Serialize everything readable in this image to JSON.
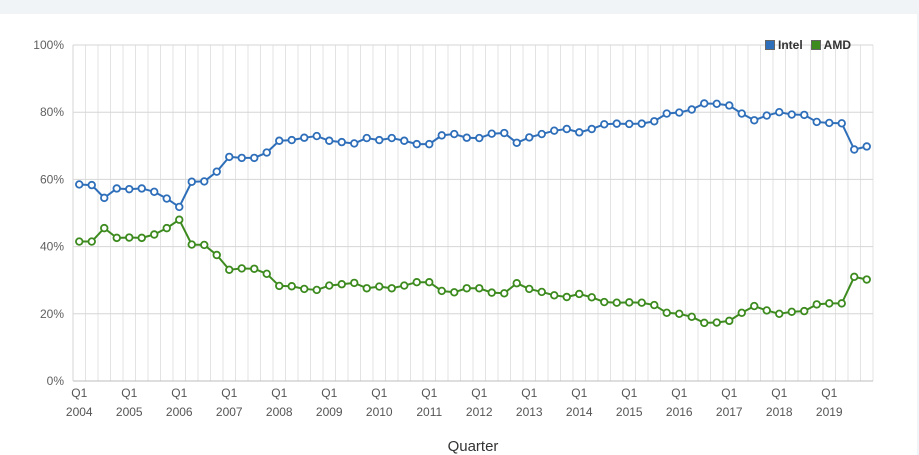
{
  "chart_data": {
    "type": "line",
    "xlabel": "Quarter",
    "ylabel": "",
    "ylim": [
      0,
      100
    ],
    "y_ticks": [
      "0%",
      "20%",
      "40%",
      "60%",
      "80%",
      "100%"
    ],
    "grid": true,
    "legend_position": "top-right",
    "quarter_tick_label": "Q1",
    "years": [
      "2004",
      "2005",
      "2006",
      "2007",
      "2008",
      "2009",
      "2010",
      "2011",
      "2012",
      "2013",
      "2014",
      "2015",
      "2016",
      "2017",
      "2018",
      "2019"
    ],
    "x": [
      "2004 Q1",
      "2004 Q2",
      "2004 Q3",
      "2004 Q4",
      "2005 Q1",
      "2005 Q2",
      "2005 Q3",
      "2005 Q4",
      "2006 Q1",
      "2006 Q2",
      "2006 Q3",
      "2006 Q4",
      "2007 Q1",
      "2007 Q2",
      "2007 Q3",
      "2007 Q4",
      "2008 Q1",
      "2008 Q2",
      "2008 Q3",
      "2008 Q4",
      "2009 Q1",
      "2009 Q2",
      "2009 Q3",
      "2009 Q4",
      "2010 Q1",
      "2010 Q2",
      "2010 Q3",
      "2010 Q4",
      "2011 Q1",
      "2011 Q2",
      "2011 Q3",
      "2011 Q4",
      "2012 Q1",
      "2012 Q2",
      "2012 Q3",
      "2012 Q4",
      "2013 Q1",
      "2013 Q2",
      "2013 Q3",
      "2013 Q4",
      "2014 Q1",
      "2014 Q2",
      "2014 Q3",
      "2014 Q4",
      "2015 Q1",
      "2015 Q2",
      "2015 Q3",
      "2015 Q4",
      "2016 Q1",
      "2016 Q2",
      "2016 Q3",
      "2016 Q4",
      "2017 Q1",
      "2017 Q2",
      "2017 Q3",
      "2017 Q4",
      "2018 Q1",
      "2018 Q2",
      "2018 Q3",
      "2018 Q4",
      "2019 Q1",
      "2019 Q2",
      "2019 Q3",
      "2019 Q4"
    ],
    "series": [
      {
        "name": "Intel",
        "color": "#2f6fba",
        "values": [
          58.5,
          58.3,
          54.5,
          57.3,
          57.1,
          57.3,
          56.3,
          54.3,
          51.8,
          59.3,
          59.4,
          62.3,
          66.7,
          66.4,
          66.4,
          68.0,
          71.5,
          71.7,
          72.4,
          72.9,
          71.5,
          71.1,
          70.7,
          72.3,
          71.7,
          72.3,
          71.5,
          70.5,
          70.5,
          73.1,
          73.5,
          72.4,
          72.3,
          73.6,
          73.8,
          70.9,
          72.5,
          73.5,
          74.5,
          75.0,
          74.0,
          75.0,
          76.4,
          76.6,
          76.5,
          76.6,
          77.3,
          79.6,
          79.9,
          80.8,
          82.6,
          82.5,
          82.0,
          79.6,
          77.6,
          79.0,
          80.0,
          79.3,
          79.2,
          77.1,
          76.8,
          76.7,
          68.9,
          69.8
        ]
      },
      {
        "name": "AMD",
        "color": "#3d8b1f",
        "values": [
          41.5,
          41.5,
          45.5,
          42.6,
          42.7,
          42.6,
          43.6,
          45.5,
          48.0,
          40.6,
          40.5,
          37.5,
          33.1,
          33.5,
          33.4,
          31.9,
          28.3,
          28.2,
          27.4,
          27.1,
          28.4,
          28.8,
          29.2,
          27.6,
          28.1,
          27.6,
          28.4,
          29.4,
          29.4,
          26.8,
          26.4,
          27.6,
          27.6,
          26.3,
          26.1,
          29.1,
          27.4,
          26.5,
          25.5,
          25.0,
          25.9,
          24.9,
          23.5,
          23.3,
          23.4,
          23.3,
          22.6,
          20.3,
          20.0,
          19.1,
          17.3,
          17.4,
          17.9,
          20.3,
          22.3,
          21.0,
          20.0,
          20.6,
          20.8,
          22.8,
          23.1,
          23.1,
          31.0,
          30.2
        ]
      }
    ]
  }
}
